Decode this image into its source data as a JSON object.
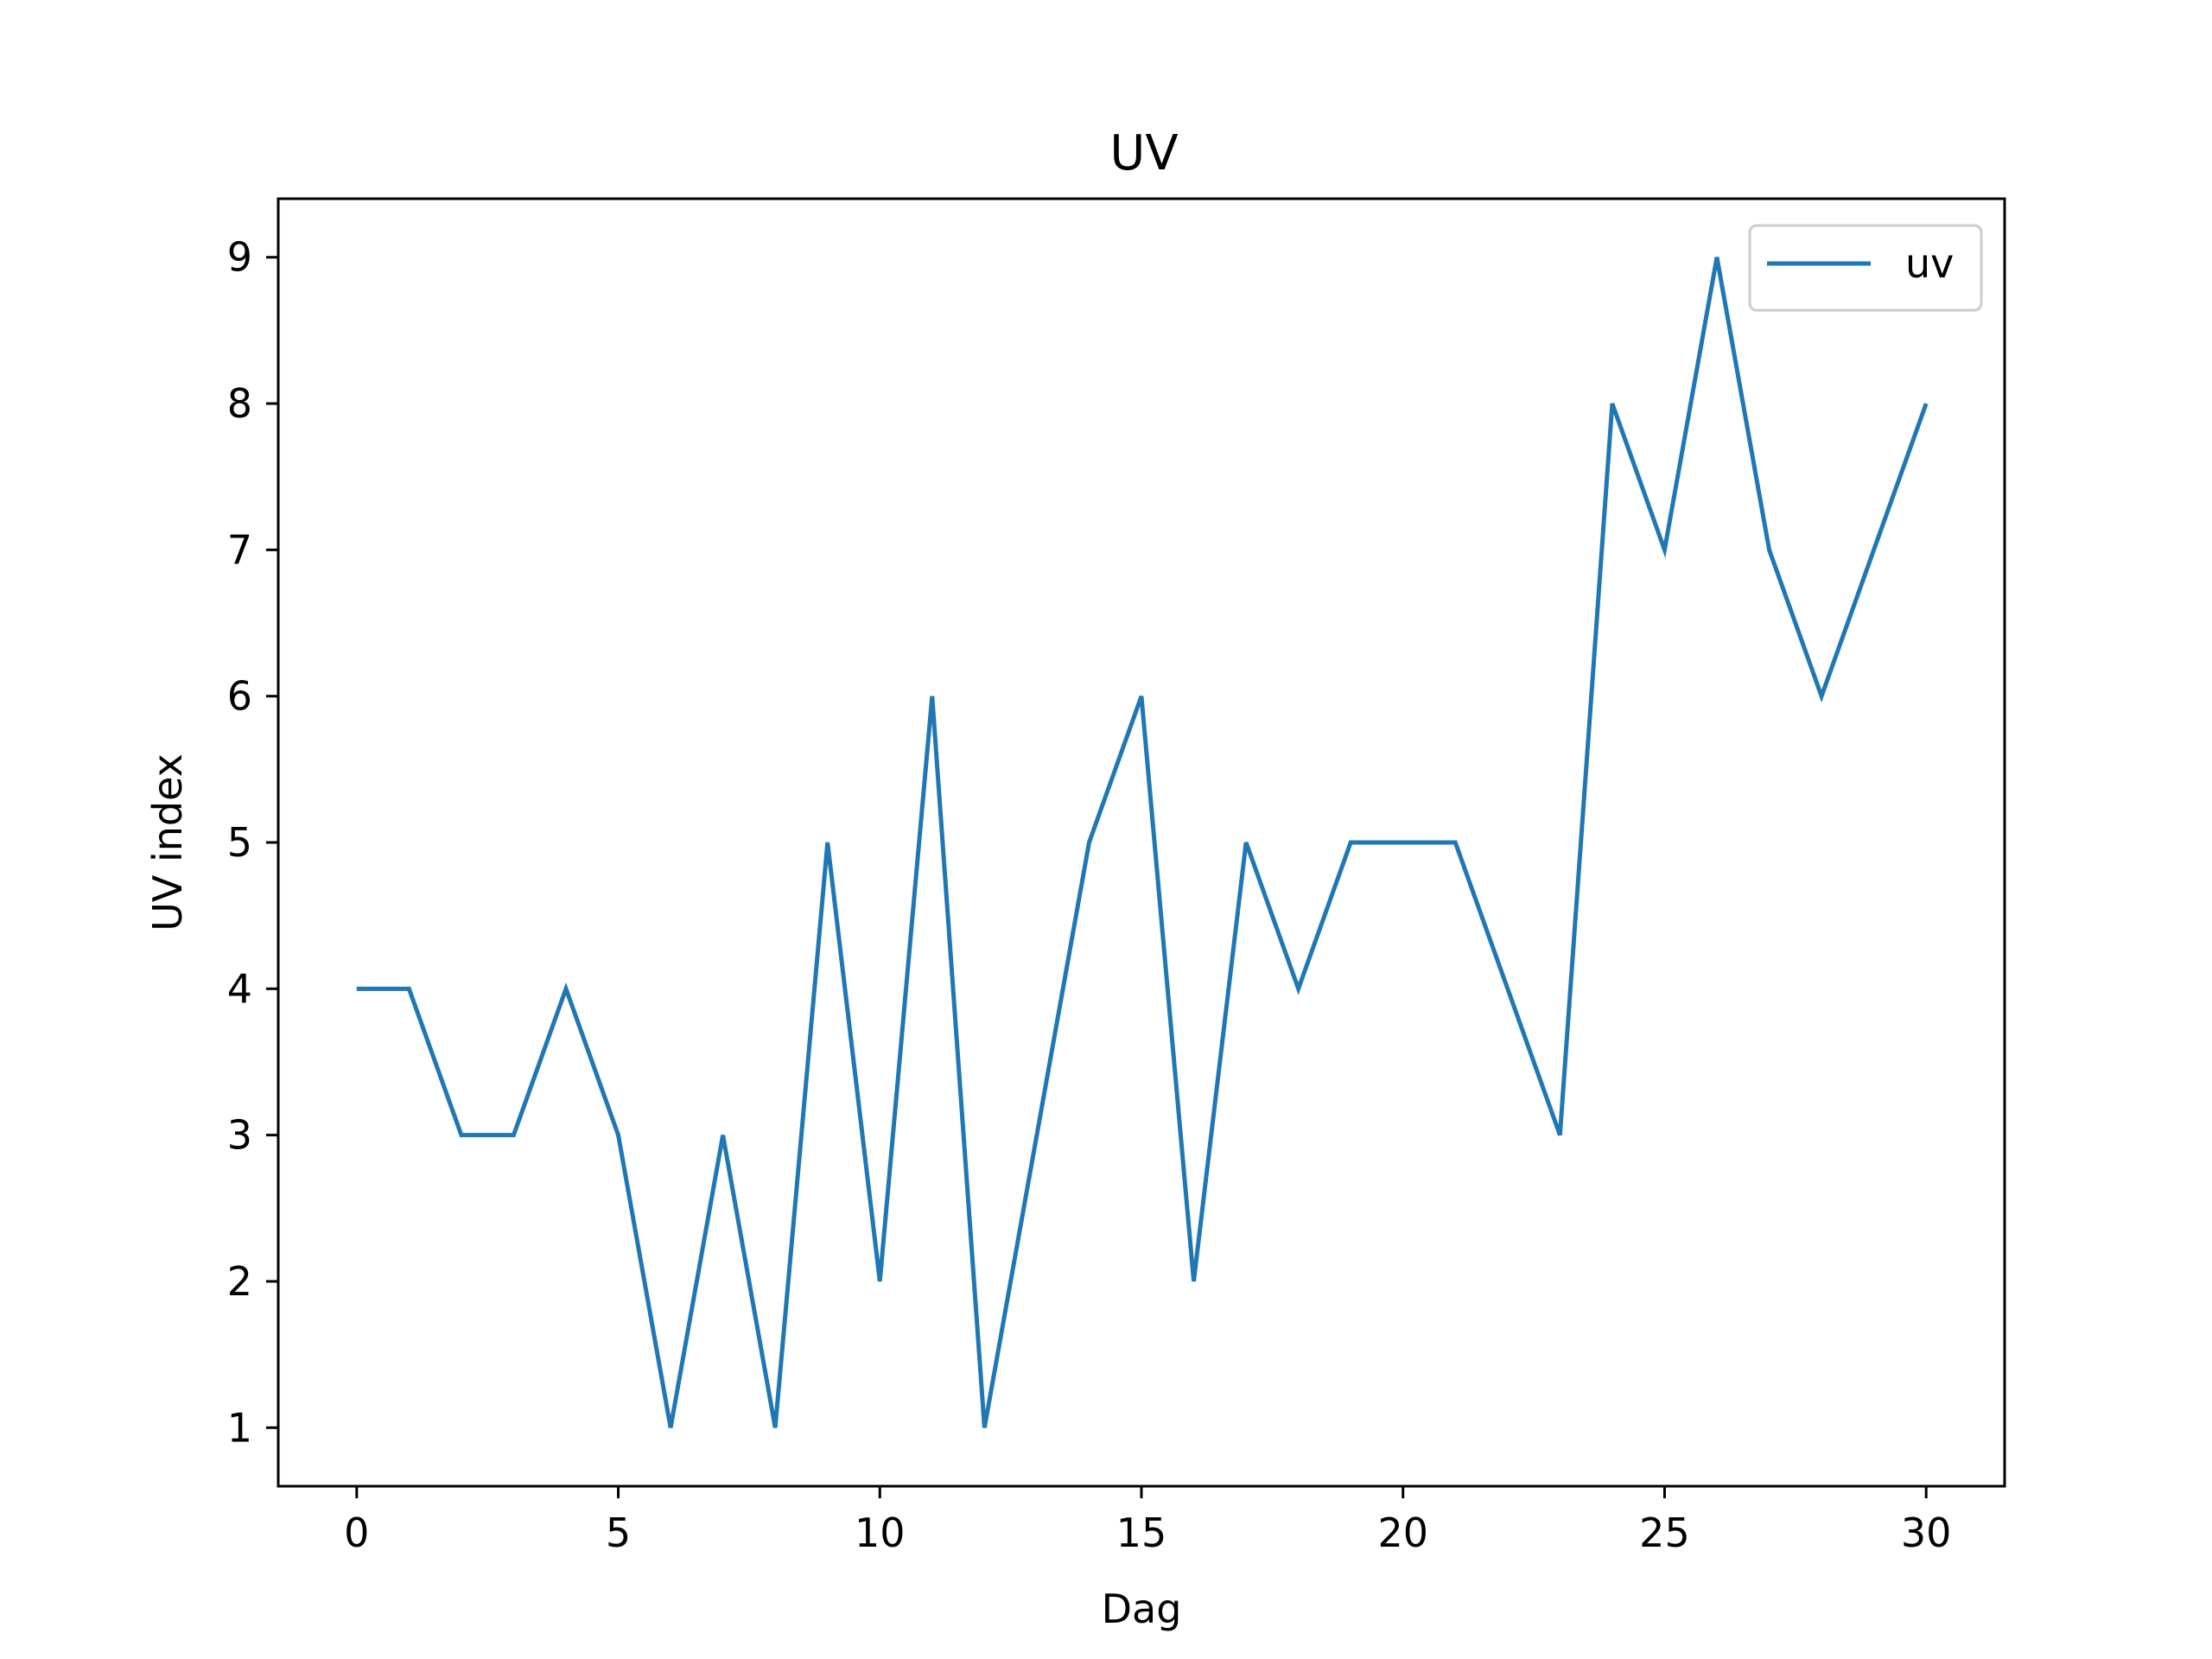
{
  "chart_data": {
    "type": "line",
    "title": "UV",
    "xlabel": "Dag",
    "ylabel": "UV index",
    "x": [
      0,
      1,
      2,
      3,
      4,
      5,
      6,
      7,
      8,
      9,
      10,
      11,
      12,
      13,
      14,
      15,
      16,
      17,
      18,
      19,
      20,
      21,
      22,
      23,
      24,
      25,
      26,
      27,
      28,
      29,
      30
    ],
    "xlim": [
      -1.5,
      31.5
    ],
    "ylim": [
      0.6,
      9.4
    ],
    "xticks": [
      0,
      5,
      10,
      15,
      20,
      25,
      30
    ],
    "yticks": [
      1,
      2,
      3,
      4,
      5,
      6,
      7,
      8,
      9
    ],
    "series": [
      {
        "name": "uv",
        "color": "#1f77b4",
        "values": [
          4,
          4,
          3,
          3,
          4,
          3,
          1,
          3,
          1,
          5,
          2,
          6,
          1,
          3,
          5,
          6,
          2,
          5,
          4,
          5,
          5,
          5,
          4,
          3,
          8,
          7,
          9,
          7,
          6,
          7,
          8
        ]
      }
    ],
    "legend": {
      "position": "top-right",
      "entries": [
        "uv"
      ]
    },
    "grid": false
  }
}
